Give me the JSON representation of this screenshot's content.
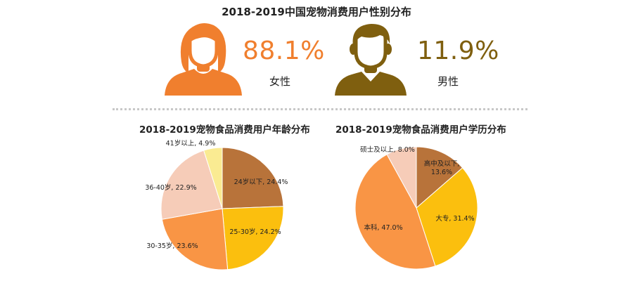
{
  "main_title": "2018-2019中国宠物消费用户性别分布",
  "gender": {
    "female": {
      "percent": "88.1%",
      "label": "女性",
      "color": "#f07f2e"
    },
    "male": {
      "percent": "11.9%",
      "label": "男性",
      "color": "#7f5f0f"
    }
  },
  "icons": {
    "female": "woman-avatar-icon",
    "male": "man-avatar-icon"
  },
  "chart_data": [
    {
      "type": "pie",
      "title": "2018-2019宠物食品消费用户年龄分布",
      "categories": [
        "24岁以下",
        "25-30岁",
        "30-35岁",
        "36-40岁",
        "41岁以上"
      ],
      "values": [
        24.4,
        24.2,
        23.6,
        22.9,
        4.9
      ],
      "labels": [
        "24岁以下, 24.4%",
        "25-30岁, 24.2%",
        "30-35岁, 23.6%",
        "36-40岁, 22.9%",
        "41岁以上, 4.9%"
      ],
      "colors": [
        "#b8733a",
        "#fbbf0e",
        "#f99545",
        "#f6ccb8",
        "#faeb92"
      ]
    },
    {
      "type": "pie",
      "title": "2018-2019宠物食品消费用户学历分布",
      "categories": [
        "高中及以下",
        "大专",
        "本科",
        "硕士及以上"
      ],
      "values": [
        13.6,
        31.4,
        47.0,
        8.0
      ],
      "labels": [
        [
          "高中及以下,",
          "13.6%"
        ],
        [
          "大专, 31.4%"
        ],
        [
          "本科, 47.0%"
        ],
        [
          "硕士及以上, 8.0%"
        ]
      ],
      "colors": [
        "#b8733a",
        "#fbbf0e",
        "#f99545",
        "#f6ccb8"
      ]
    }
  ]
}
